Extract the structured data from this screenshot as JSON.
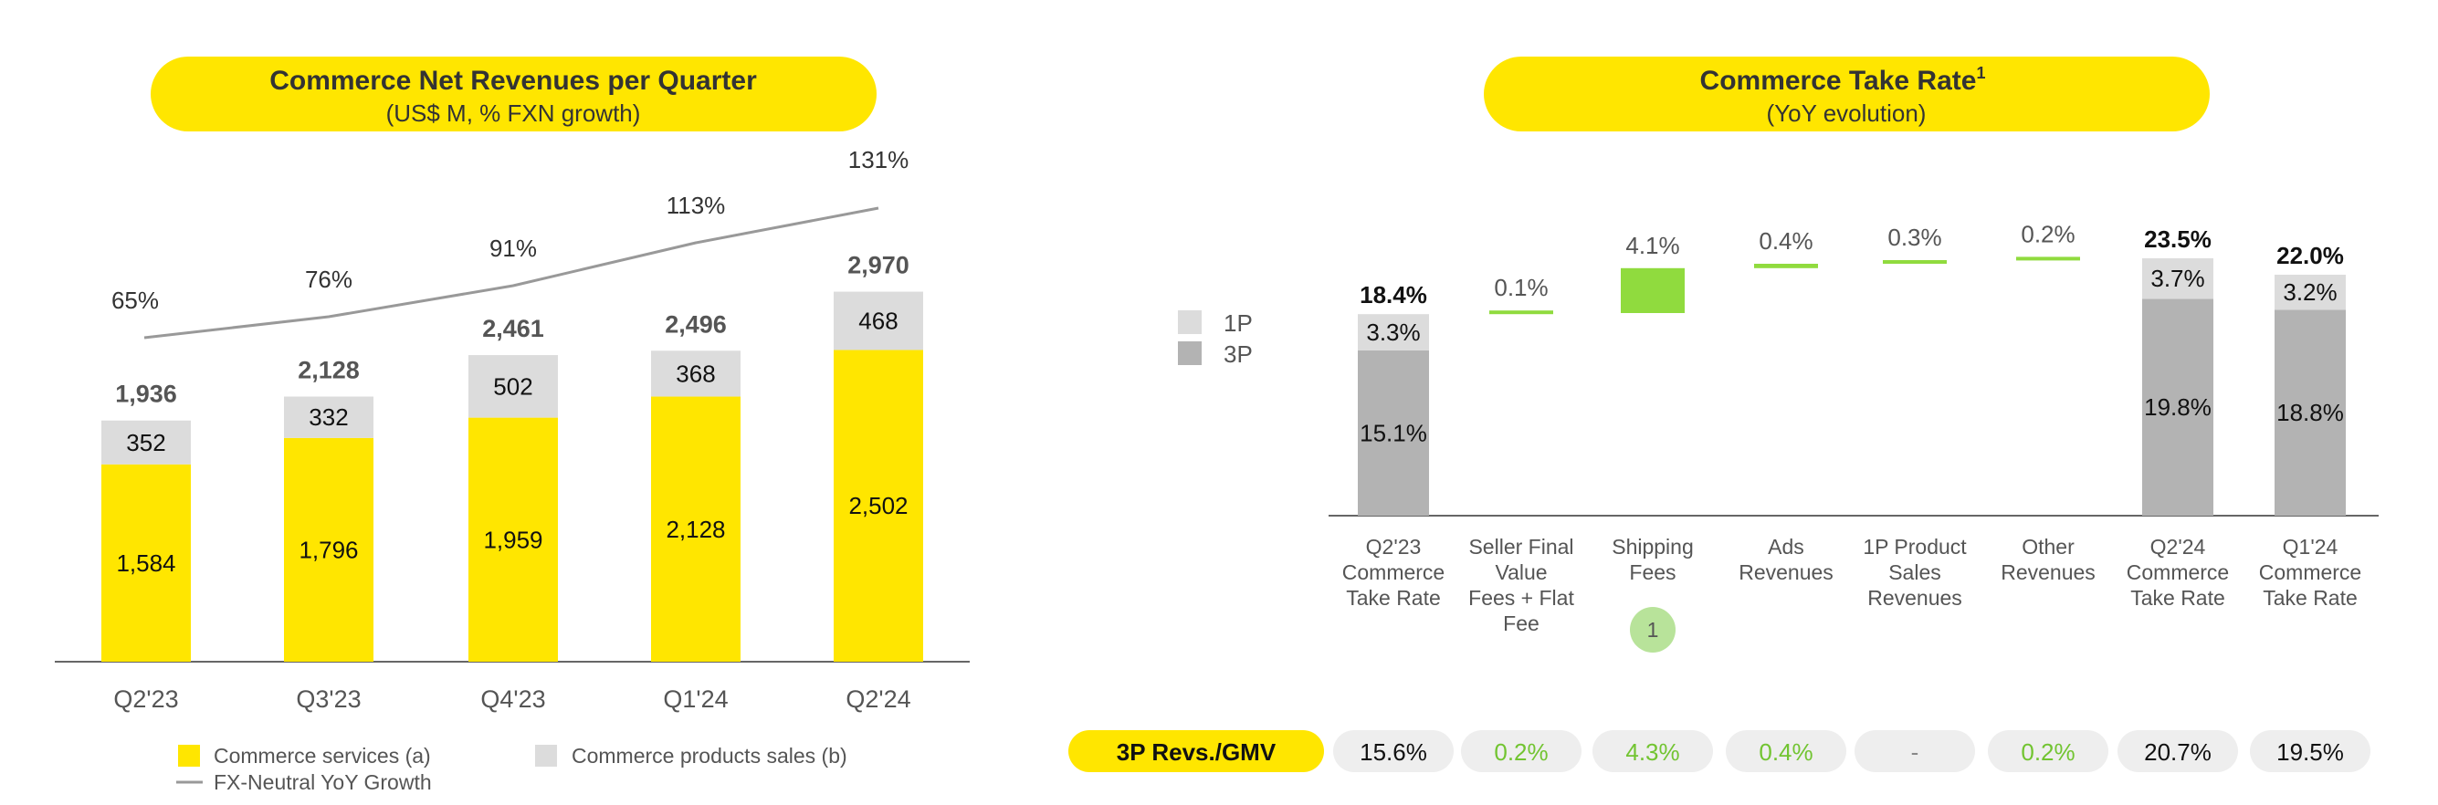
{
  "colors": {
    "yellow": "#FFE600",
    "light_gray": "#DCDCDC",
    "mid_gray": "#B3B3B3",
    "green": "#90DB3E",
    "green_text": "#72C431",
    "pill_gray": "#EEEEEE"
  },
  "left_panel": {
    "title": "Commerce Net Revenues per Quarter",
    "subtitle": "(US$ M, % FXN growth)"
  },
  "right_panel": {
    "title": "Commerce Take Rate",
    "title_sup": "1",
    "subtitle": "(YoY evolution)"
  },
  "chart_data": [
    {
      "type": "bar",
      "stacked": true,
      "categories": [
        "Q2'23",
        "Q3'23",
        "Q4'23",
        "Q1'24",
        "Q2'24"
      ],
      "series": [
        {
          "name": "Commerce services (a)",
          "values": [
            1584,
            1796,
            1959,
            2128,
            2502
          ],
          "labels": [
            "1,584",
            "1,796",
            "1,959",
            "2,128",
            "2,502"
          ],
          "color": "#FFE600"
        },
        {
          "name": "Commerce products sales (b)",
          "values": [
            352,
            332,
            502,
            368,
            468
          ],
          "labels": [
            "352",
            "332",
            "502",
            "368",
            "468"
          ],
          "color": "#DCDCDC"
        }
      ],
      "totals": [
        1936,
        2128,
        2461,
        2496,
        2970
      ],
      "total_labels": [
        "1,936",
        "2,128",
        "2,461",
        "2,496",
        "2,970"
      ],
      "line": {
        "name": "FX-Neutral YoY Growth",
        "values": [
          65,
          76,
          91,
          113,
          131
        ],
        "labels": [
          "65%",
          "76%",
          "91%",
          "113%",
          "131%"
        ]
      },
      "legend": [
        "Commerce services (a)",
        "Commerce products sales (b)",
        "FX-Neutral YoY Growth"
      ],
      "legend_position": "bottom"
    },
    {
      "type": "bar",
      "waterfall": true,
      "legend": [
        "1P",
        "3P"
      ],
      "legend_position": "left",
      "categories": [
        [
          "Q2'23",
          "Commerce",
          "Take Rate"
        ],
        [
          "Seller Final",
          "Value",
          "Fees + Flat",
          "Fee"
        ],
        [
          "Shipping",
          "Fees"
        ],
        [
          "Ads",
          "Revenues"
        ],
        [
          "1P Product",
          "Sales",
          "Revenues"
        ],
        [
          "Other",
          "Revenues"
        ],
        [
          "Q2'24",
          "Commerce",
          "Take Rate"
        ],
        [
          "Q1'24",
          "Commerce",
          "Take Rate"
        ]
      ],
      "bars": [
        {
          "kind": "total",
          "p3": 15.1,
          "p1": 3.3,
          "total": 18.4,
          "labels": {
            "p3": "15.1%",
            "p1": "3.3%",
            "total": "18.4%"
          }
        },
        {
          "kind": "delta",
          "base": 18.4,
          "value": 0.1,
          "label": "0.1%"
        },
        {
          "kind": "delta",
          "base": 18.5,
          "value": 4.1,
          "label": "4.1%"
        },
        {
          "kind": "delta",
          "base": 22.6,
          "value": 0.4,
          "label": "0.4%"
        },
        {
          "kind": "delta",
          "base": 23.0,
          "value": 0.3,
          "label": "0.3%"
        },
        {
          "kind": "delta",
          "base": 23.3,
          "value": 0.2,
          "label": "0.2%"
        },
        {
          "kind": "total",
          "p3": 19.8,
          "p1": 3.7,
          "total": 23.5,
          "labels": {
            "p3": "19.8%",
            "p1": "3.7%",
            "total": "23.5%"
          }
        },
        {
          "kind": "total",
          "p3": 18.8,
          "p1": 3.2,
          "total": 22.0,
          "labels": {
            "p3": "18.8%",
            "p1": "3.2%",
            "total": "22.0%"
          }
        }
      ],
      "footnote_marker": {
        "category_index": 2,
        "label": "1"
      },
      "ymax": 30
    }
  ],
  "table": {
    "label": "3P Revs./GMV",
    "cells": [
      {
        "text": "15.6%",
        "style": "total"
      },
      {
        "text": "0.2%",
        "style": "delta"
      },
      {
        "text": "4.3%",
        "style": "delta"
      },
      {
        "text": "0.4%",
        "style": "delta"
      },
      {
        "text": "-",
        "style": "dash"
      },
      {
        "text": "0.2%",
        "style": "delta"
      },
      {
        "text": "20.7%",
        "style": "total"
      },
      {
        "text": "19.5%",
        "style": "total"
      }
    ]
  }
}
